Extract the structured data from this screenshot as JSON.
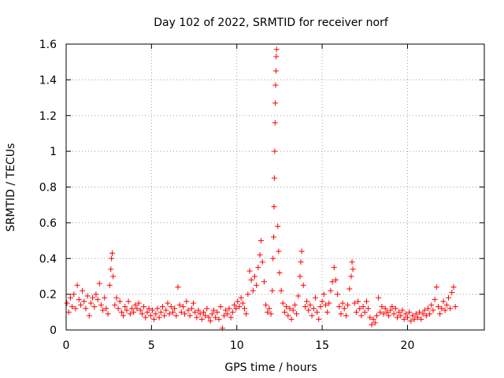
{
  "chart_data": {
    "type": "scatter",
    "title": "Day 102 of 2022, SRMTID for receiver norf",
    "xlabel": "GPS time / hours",
    "ylabel": "SRMTID / TECUs",
    "xlim": [
      0,
      24.5
    ],
    "ylim": [
      0,
      1.6
    ],
    "x_ticks": [
      0,
      5,
      10,
      15,
      20
    ],
    "x_tick_labels": [
      "0",
      "5",
      "10",
      "15",
      "20"
    ],
    "y_ticks": [
      0,
      0.2,
      0.4,
      0.6,
      0.8,
      1,
      1.2,
      1.4,
      1.6
    ],
    "y_tick_labels": [
      "0",
      "0.2",
      "0.4",
      "0.6",
      "0.8",
      "1",
      "1.2",
      "1.4",
      "1.6"
    ],
    "grid": true,
    "marker": "+",
    "series": [
      {
        "name": "norf",
        "color": "#ff0000",
        "points": [
          [
            0.05,
            0.15
          ],
          [
            0.15,
            0.1
          ],
          [
            0.25,
            0.18
          ],
          [
            0.35,
            0.13
          ],
          [
            0.45,
            0.2
          ],
          [
            0.55,
            0.12
          ],
          [
            0.65,
            0.25
          ],
          [
            0.75,
            0.17
          ],
          [
            0.85,
            0.14
          ],
          [
            0.95,
            0.22
          ],
          [
            1.05,
            0.16
          ],
          [
            1.15,
            0.12
          ],
          [
            1.25,
            0.19
          ],
          [
            1.35,
            0.08
          ],
          [
            1.45,
            0.15
          ],
          [
            1.55,
            0.18
          ],
          [
            1.65,
            0.13
          ],
          [
            1.75,
            0.2
          ],
          [
            1.85,
            0.17
          ],
          [
            1.95,
            0.26
          ],
          [
            2.05,
            0.14
          ],
          [
            2.15,
            0.11
          ],
          [
            2.25,
            0.18
          ],
          [
            2.35,
            0.12
          ],
          [
            2.45,
            0.09
          ],
          [
            2.55,
            0.25
          ],
          [
            2.62,
            0.34
          ],
          [
            2.66,
            0.4
          ],
          [
            2.7,
            0.43
          ],
          [
            2.75,
            0.3
          ],
          [
            2.85,
            0.14
          ],
          [
            2.95,
            0.18
          ],
          [
            3.05,
            0.12
          ],
          [
            3.15,
            0.16
          ],
          [
            3.25,
            0.1
          ],
          [
            3.35,
            0.08
          ],
          [
            3.45,
            0.13
          ],
          [
            3.55,
            0.11
          ],
          [
            3.65,
            0.16
          ],
          [
            3.75,
            0.09
          ],
          [
            3.85,
            0.12
          ],
          [
            3.95,
            0.1
          ],
          [
            4.05,
            0.14
          ],
          [
            4.15,
            0.12
          ],
          [
            4.25,
            0.15
          ],
          [
            4.35,
            0.11
          ],
          [
            4.45,
            0.09
          ],
          [
            4.55,
            0.13
          ],
          [
            4.65,
            0.07
          ],
          [
            4.75,
            0.1
          ],
          [
            4.85,
            0.12
          ],
          [
            4.95,
            0.08
          ],
          [
            5.05,
            0.11
          ],
          [
            5.15,
            0.06
          ],
          [
            5.25,
            0.09
          ],
          [
            5.35,
            0.12
          ],
          [
            5.45,
            0.07
          ],
          [
            5.55,
            0.1
          ],
          [
            5.65,
            0.13
          ],
          [
            5.75,
            0.08
          ],
          [
            5.85,
            0.11
          ],
          [
            5.95,
            0.15
          ],
          [
            6.05,
            0.09
          ],
          [
            6.15,
            0.13
          ],
          [
            6.25,
            0.1
          ],
          [
            6.35,
            0.12
          ],
          [
            6.45,
            0.08
          ],
          [
            6.55,
            0.24
          ],
          [
            6.65,
            0.14
          ],
          [
            6.75,
            0.1
          ],
          [
            6.85,
            0.13
          ],
          [
            6.95,
            0.09
          ],
          [
            7.05,
            0.16
          ],
          [
            7.15,
            0.11
          ],
          [
            7.25,
            0.08
          ],
          [
            7.35,
            0.12
          ],
          [
            7.45,
            0.15
          ],
          [
            7.55,
            0.1
          ],
          [
            7.65,
            0.07
          ],
          [
            7.75,
            0.11
          ],
          [
            7.85,
            0.09
          ],
          [
            7.95,
            0.06
          ],
          [
            8.05,
            0.1
          ],
          [
            8.15,
            0.08
          ],
          [
            8.25,
            0.12
          ],
          [
            8.35,
            0.07
          ],
          [
            8.45,
            0.05
          ],
          [
            8.55,
            0.09
          ],
          [
            8.65,
            0.11
          ],
          [
            8.75,
            0.07
          ],
          [
            8.85,
            0.1
          ],
          [
            8.95,
            0.06
          ],
          [
            9.05,
            0.13
          ],
          [
            9.15,
            0.01
          ],
          [
            9.25,
            0.08
          ],
          [
            9.35,
            0.11
          ],
          [
            9.45,
            0.09
          ],
          [
            9.55,
            0.12
          ],
          [
            9.65,
            0.07
          ],
          [
            9.75,
            0.1
          ],
          [
            9.85,
            0.14
          ],
          [
            9.95,
            0.12
          ],
          [
            10.05,
            0.16
          ],
          [
            10.15,
            0.13
          ],
          [
            10.25,
            0.18
          ],
          [
            10.35,
            0.15
          ],
          [
            10.45,
            0.12
          ],
          [
            10.55,
            0.09
          ],
          [
            10.65,
            0.2
          ],
          [
            10.75,
            0.33
          ],
          [
            10.85,
            0.28
          ],
          [
            10.95,
            0.22
          ],
          [
            11.05,
            0.3
          ],
          [
            11.15,
            0.25
          ],
          [
            11.25,
            0.35
          ],
          [
            11.35,
            0.42
          ],
          [
            11.42,
            0.5
          ],
          [
            11.5,
            0.38
          ],
          [
            11.6,
            0.27
          ],
          [
            11.7,
            0.14
          ],
          [
            11.8,
            0.1
          ],
          [
            11.9,
            0.12
          ],
          [
            12.0,
            0.09
          ],
          [
            12.08,
            0.22
          ],
          [
            12.12,
            0.4
          ],
          [
            12.16,
            0.52
          ],
          [
            12.18,
            0.69
          ],
          [
            12.2,
            0.85
          ],
          [
            12.22,
            1.0
          ],
          [
            12.24,
            1.16
          ],
          [
            12.25,
            1.27
          ],
          [
            12.27,
            1.37
          ],
          [
            12.29,
            1.45
          ],
          [
            12.31,
            1.53
          ],
          [
            12.33,
            1.57
          ],
          [
            12.4,
            0.58
          ],
          [
            12.45,
            0.44
          ],
          [
            12.5,
            0.32
          ],
          [
            12.6,
            0.22
          ],
          [
            12.7,
            0.15
          ],
          [
            12.8,
            0.1
          ],
          [
            12.9,
            0.13
          ],
          [
            13.0,
            0.08
          ],
          [
            13.1,
            0.12
          ],
          [
            13.2,
            0.06
          ],
          [
            13.3,
            0.11
          ],
          [
            13.4,
            0.14
          ],
          [
            13.5,
            0.09
          ],
          [
            13.6,
            0.19
          ],
          [
            13.7,
            0.3
          ],
          [
            13.75,
            0.38
          ],
          [
            13.8,
            0.44
          ],
          [
            13.9,
            0.25
          ],
          [
            14.0,
            0.13
          ],
          [
            14.1,
            0.16
          ],
          [
            14.2,
            0.11
          ],
          [
            14.3,
            0.14
          ],
          [
            14.4,
            0.08
          ],
          [
            14.5,
            0.12
          ],
          [
            14.6,
            0.18
          ],
          [
            14.7,
            0.1
          ],
          [
            14.8,
            0.06
          ],
          [
            14.9,
            0.13
          ],
          [
            15.0,
            0.16
          ],
          [
            15.1,
            0.2
          ],
          [
            15.2,
            0.14
          ],
          [
            15.3,
            0.1
          ],
          [
            15.4,
            0.15
          ],
          [
            15.5,
            0.22
          ],
          [
            15.6,
            0.27
          ],
          [
            15.7,
            0.35
          ],
          [
            15.8,
            0.28
          ],
          [
            15.9,
            0.2
          ],
          [
            16.0,
            0.13
          ],
          [
            16.1,
            0.09
          ],
          [
            16.2,
            0.15
          ],
          [
            16.3,
            0.12
          ],
          [
            16.4,
            0.08
          ],
          [
            16.5,
            0.14
          ],
          [
            16.6,
            0.23
          ],
          [
            16.7,
            0.3
          ],
          [
            16.75,
            0.38
          ],
          [
            16.8,
            0.34
          ],
          [
            16.9,
            0.15
          ],
          [
            17.0,
            0.1
          ],
          [
            17.1,
            0.16
          ],
          [
            17.2,
            0.12
          ],
          [
            17.3,
            0.08
          ],
          [
            17.4,
            0.13
          ],
          [
            17.5,
            0.1
          ],
          [
            17.6,
            0.16
          ],
          [
            17.7,
            0.12
          ],
          [
            17.8,
            0.07
          ],
          [
            17.9,
            0.03
          ],
          [
            18.0,
            0.06
          ],
          [
            18.1,
            0.04
          ],
          [
            18.2,
            0.08
          ],
          [
            18.3,
            0.18
          ],
          [
            18.4,
            0.1
          ],
          [
            18.5,
            0.13
          ],
          [
            18.6,
            0.09
          ],
          [
            18.7,
            0.12
          ],
          [
            18.8,
            0.1
          ],
          [
            18.9,
            0.08
          ],
          [
            19.0,
            0.11
          ],
          [
            19.1,
            0.13
          ],
          [
            19.2,
            0.09
          ],
          [
            19.3,
            0.12
          ],
          [
            19.4,
            0.07
          ],
          [
            19.5,
            0.1
          ],
          [
            19.6,
            0.08
          ],
          [
            19.7,
            0.11
          ],
          [
            19.8,
            0.06
          ],
          [
            19.9,
            0.09
          ],
          [
            20.0,
            0.07
          ],
          [
            20.1,
            0.1
          ],
          [
            20.2,
            0.05
          ],
          [
            20.3,
            0.08
          ],
          [
            20.4,
            0.06
          ],
          [
            20.5,
            0.09
          ],
          [
            20.6,
            0.07
          ],
          [
            20.7,
            0.1
          ],
          [
            20.8,
            0.06
          ],
          [
            20.9,
            0.09
          ],
          [
            21.0,
            0.11
          ],
          [
            21.1,
            0.08
          ],
          [
            21.2,
            0.12
          ],
          [
            21.3,
            0.09
          ],
          [
            21.4,
            0.14
          ],
          [
            21.5,
            0.11
          ],
          [
            21.6,
            0.17
          ],
          [
            21.7,
            0.24
          ],
          [
            21.8,
            0.13
          ],
          [
            21.9,
            0.09
          ],
          [
            22.0,
            0.12
          ],
          [
            22.1,
            0.16
          ],
          [
            22.2,
            0.11
          ],
          [
            22.3,
            0.14
          ],
          [
            22.4,
            0.18
          ],
          [
            22.5,
            0.12
          ],
          [
            22.6,
            0.21
          ],
          [
            22.7,
            0.24
          ],
          [
            22.8,
            0.13
          ]
        ]
      }
    ]
  }
}
